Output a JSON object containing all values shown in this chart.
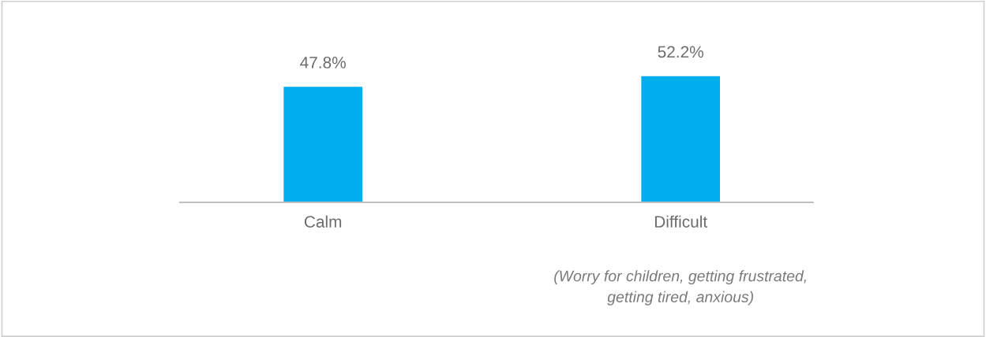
{
  "chart_data": {
    "type": "bar",
    "categories": [
      "Calm",
      "Difficult"
    ],
    "values": [
      47.8,
      52.2
    ],
    "color": "#00aeef",
    "data_labels": true,
    "grid": false,
    "value_labels": [
      "47.8%",
      "52.2%"
    ],
    "annotations": [
      "(Worry for children, getting frustrated,\ngetting tired, anxious)"
    ]
  }
}
